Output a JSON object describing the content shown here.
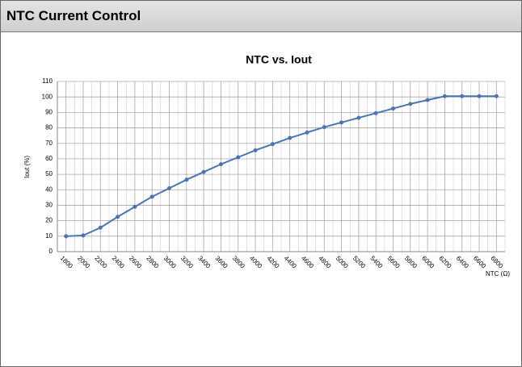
{
  "header": {
    "title": "NTC Current Control"
  },
  "chart_data": {
    "type": "line",
    "title": "NTC vs. Iout",
    "y_label": "Iout (%)",
    "x_label": "NTC (Ω)",
    "categories": [
      "1800",
      "2000",
      "2200",
      "2400",
      "2600",
      "2800",
      "3000",
      "3200",
      "3400",
      "3600",
      "3800",
      "4000",
      "4200",
      "4400",
      "4600",
      "4800",
      "5000",
      "5200",
      "5400",
      "5600",
      "5800",
      "6000",
      "6200",
      "6400",
      "6600",
      "6800"
    ],
    "series": [
      {
        "name": "Iout",
        "color": "#4a74b4",
        "values": [
          10,
          10.5,
          15.5,
          22.5,
          29,
          35.5,
          41,
          46.5,
          51.5,
          56.5,
          61,
          65.5,
          69.5,
          73.5,
          77,
          80.5,
          83.5,
          86.5,
          89.5,
          92.5,
          95.5,
          98,
          100.5,
          100.5,
          100.5,
          100.5
        ]
      }
    ],
    "ylim": [
      0,
      110
    ],
    "yticks": [
      0,
      10,
      20,
      30,
      40,
      50,
      60,
      70,
      80,
      90,
      100,
      110
    ],
    "grid": true
  }
}
